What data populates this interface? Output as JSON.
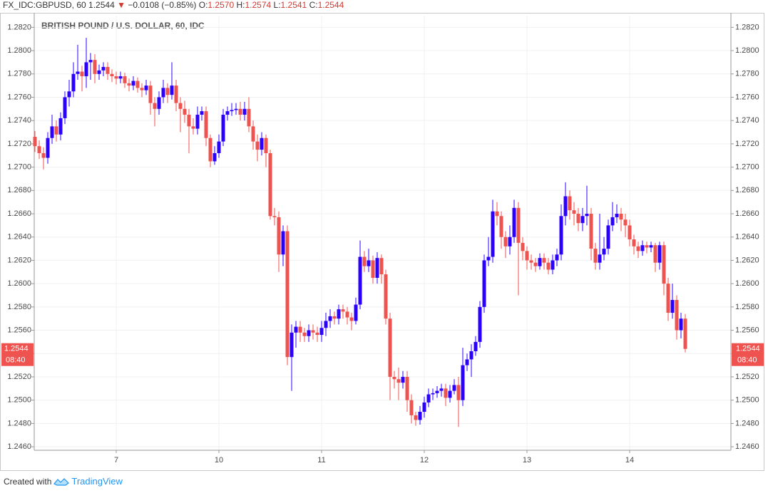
{
  "header": {
    "symbol": "FX_IDC:GBPUSD, 60",
    "last": "1.2544",
    "arrow": "▼",
    "change": "−0.0108 (−0.85%)",
    "open_label": "O:",
    "open": "1.2570",
    "high_label": "H:",
    "high": "1.2574",
    "low_label": "L:",
    "low": "1.2541",
    "close_label": "C:",
    "close": "1.2544"
  },
  "footer": {
    "created": "Created with",
    "brand": "TradingView"
  },
  "chart_data": {
    "type": "candlestick",
    "watermark": "BRITISH POUND / U.S. DOLLAR, 60, IDC",
    "up_color": "#2b00ff",
    "down_color": "#ef5350",
    "grid": true,
    "ylim": [
      1.2457,
      1.283
    ],
    "yticks": [
      {
        "value": 1.246,
        "label": "1.2460"
      },
      {
        "value": 1.248,
        "label": "1.2480"
      },
      {
        "value": 1.25,
        "label": "1.2500"
      },
      {
        "value": 1.252,
        "label": "1.2520"
      },
      {
        "value": 1.254,
        "label": "1.2540"
      },
      {
        "value": 1.256,
        "label": "1.2560"
      },
      {
        "value": 1.258,
        "label": "1.2580"
      },
      {
        "value": 1.26,
        "label": "1.2600"
      },
      {
        "value": 1.262,
        "label": "1.2620"
      },
      {
        "value": 1.264,
        "label": "1.2640"
      },
      {
        "value": 1.266,
        "label": "1.2660"
      },
      {
        "value": 1.268,
        "label": "1.2680"
      },
      {
        "value": 1.27,
        "label": "1.2700"
      },
      {
        "value": 1.272,
        "label": "1.2720"
      },
      {
        "value": 1.274,
        "label": "1.2740"
      },
      {
        "value": 1.276,
        "label": "1.2760"
      },
      {
        "value": 1.278,
        "label": "1.2780"
      },
      {
        "value": 1.28,
        "label": "1.2800"
      },
      {
        "value": 1.282,
        "label": "1.2820"
      }
    ],
    "price_label": {
      "value": 1.2544,
      "label": "1.2544",
      "time": "08:40"
    },
    "categories": [
      null,
      null,
      null,
      null,
      null,
      null,
      null,
      null,
      null,
      null,
      null,
      null,
      null,
      null,
      null,
      null,
      null,
      null,
      null,
      "7",
      null,
      null,
      null,
      null,
      null,
      null,
      null,
      null,
      null,
      null,
      null,
      null,
      null,
      null,
      null,
      null,
      null,
      null,
      null,
      null,
      null,
      null,
      null,
      "10",
      null,
      null,
      null,
      null,
      null,
      null,
      null,
      null,
      null,
      null,
      null,
      null,
      null,
      null,
      null,
      null,
      null,
      null,
      null,
      null,
      null,
      null,
      null,
      "11",
      null,
      null,
      null,
      null,
      null,
      null,
      null,
      null,
      null,
      null,
      null,
      null,
      null,
      null,
      null,
      null,
      null,
      null,
      null,
      null,
      null,
      null,
      null,
      "12",
      null,
      null,
      null,
      null,
      null,
      null,
      null,
      null,
      null,
      null,
      null,
      null,
      null,
      null,
      null,
      null,
      null,
      null,
      null,
      null,
      null,
      null,
      null,
      "13",
      null,
      null,
      null,
      null,
      null,
      null,
      null,
      null,
      null,
      null,
      null,
      null,
      null,
      null,
      null,
      null,
      null,
      null,
      null,
      null,
      null,
      null,
      null,
      "14",
      null,
      null,
      null,
      null,
      null,
      null,
      null,
      null,
      null,
      null,
      null,
      null,
      null
    ],
    "open": [
      1.2726,
      1.2718,
      1.2712,
      1.2708,
      1.2725,
      1.2735,
      1.2728,
      1.2742,
      1.276,
      1.2765,
      1.278,
      1.2782,
      1.2778,
      1.279,
      1.2792,
      1.278,
      1.2783,
      1.2786,
      1.278,
      1.2778,
      1.2776,
      1.2778,
      1.2772,
      1.277,
      1.2774,
      1.2768,
      1.2766,
      1.277,
      1.2755,
      1.275,
      1.276,
      1.2768,
      1.2762,
      1.277,
      1.2755,
      1.275,
      1.2745,
      1.2735,
      1.2733,
      1.2745,
      1.2748,
      1.2725,
      1.2705,
      1.2712,
      1.2722,
      1.2745,
      1.2748,
      1.2749,
      1.275,
      1.2745,
      1.275,
      1.2735,
      1.2722,
      1.2715,
      1.2725,
      1.2712,
      1.2658,
      1.2657,
      1.2625,
      1.2645,
      1.2537,
      1.2558,
      1.2563,
      1.2558,
      1.2555,
      1.256,
      1.2558,
      1.2556,
      1.2562,
      1.2568,
      1.2572,
      1.257,
      1.2578,
      1.2576,
      1.2571,
      1.2568,
      1.2582,
      1.2623,
      1.2615,
      1.262,
      1.2605,
      1.2622,
      1.2608,
      1.257,
      1.252,
      1.2518,
      1.2515,
      1.252,
      1.25,
      1.2487,
      1.2483,
      1.249,
      1.2498,
      1.2505,
      1.2506,
      1.2508,
      1.251,
      1.2502,
      1.2508,
      1.2513,
      1.25,
      1.253,
      1.2535,
      1.2542,
      1.255,
      1.258,
      1.262,
      1.2623,
      1.2662,
      1.2658,
      1.264,
      1.2632,
      1.264,
      1.2665,
      1.2635,
      1.2628,
      1.262,
      1.2618,
      1.2615,
      1.2622,
      1.2618,
      1.2612,
      1.262,
      1.2625,
      1.2658,
      1.2675,
      1.2663,
      1.266,
      1.2652,
      1.2658,
      1.266,
      1.263,
      1.2618,
      1.2625,
      1.263,
      1.265,
      1.2657,
      1.266,
      1.2655,
      1.265,
      1.2638,
      1.2632,
      1.2628,
      1.2633,
      1.2631,
      1.2633,
      1.2618,
      1.2633,
      1.26,
      1.2575,
      1.2586,
      1.256,
      1.257
    ],
    "high": [
      1.2731,
      1.2723,
      1.2717,
      1.273,
      1.2745,
      1.274,
      1.2747,
      1.2765,
      1.2775,
      1.279,
      1.2805,
      1.2787,
      1.2811,
      1.2798,
      1.2797,
      1.2788,
      1.279,
      1.279,
      1.2784,
      1.2782,
      1.2782,
      1.2781,
      1.2776,
      1.2778,
      1.2777,
      1.2772,
      1.2775,
      1.2774,
      1.276,
      1.2765,
      1.2775,
      1.2772,
      1.279,
      1.2775,
      1.276,
      1.2757,
      1.275,
      1.2742,
      1.2752,
      1.2752,
      1.2752,
      1.2728,
      1.2718,
      1.2728,
      1.275,
      1.2752,
      1.2755,
      1.2755,
      1.2756,
      1.2756,
      1.276,
      1.274,
      1.2728,
      1.273,
      1.2728,
      1.2715,
      1.2665,
      1.2662,
      1.265,
      1.265,
      1.2565,
      1.2568,
      1.2568,
      1.2562,
      1.2565,
      1.2565,
      1.2563,
      1.2568,
      1.2575,
      1.2578,
      1.2576,
      1.2582,
      1.2582,
      1.258,
      1.2575,
      1.2588,
      1.2637,
      1.2628,
      1.263,
      1.2624,
      1.2627,
      1.2625,
      1.2612,
      1.2575,
      1.2525,
      1.2528,
      1.2525,
      1.2525,
      1.2505,
      1.249,
      1.2495,
      1.2503,
      1.251,
      1.251,
      1.2512,
      1.2514,
      1.2514,
      1.2513,
      1.2518,
      1.252,
      1.2545,
      1.254,
      1.2548,
      1.2555,
      1.2585,
      1.2625,
      1.264,
      1.2672,
      1.267,
      1.2662,
      1.2645,
      1.265,
      1.2672,
      1.267,
      1.264,
      1.2632,
      1.2625,
      1.2622,
      1.2626,
      1.2626,
      1.2622,
      1.2625,
      1.263,
      1.2668,
      1.2687,
      1.268,
      1.267,
      1.2665,
      1.2665,
      1.2684,
      1.2665,
      1.2635,
      1.266,
      1.264,
      1.2655,
      1.267,
      1.2668,
      1.2665,
      1.266,
      1.2655,
      1.2642,
      1.2636,
      1.2637,
      1.2636,
      1.2636,
      1.2635,
      1.2636,
      1.2636,
      1.2605,
      1.26,
      1.259,
      1.2575,
      1.2574
    ],
    "low": [
      1.2713,
      1.2707,
      1.2698,
      1.2703,
      1.272,
      1.2722,
      1.2723,
      1.2737,
      1.2752,
      1.276,
      1.2775,
      1.2765,
      1.2768,
      1.2775,
      1.2772,
      1.2775,
      1.2778,
      1.2775,
      1.2773,
      1.2771,
      1.2772,
      1.2768,
      1.2765,
      1.2766,
      1.2764,
      1.276,
      1.2762,
      1.2745,
      1.2735,
      1.2745,
      1.2755,
      1.2755,
      1.2758,
      1.2748,
      1.273,
      1.2738,
      1.2712,
      1.2728,
      1.2728,
      1.274,
      1.2718,
      1.27,
      1.2702,
      1.2708,
      1.2718,
      1.274,
      1.2744,
      1.2745,
      1.274,
      1.274,
      1.273,
      1.2715,
      1.2705,
      1.271,
      1.27,
      1.2655,
      1.265,
      1.261,
      1.2615,
      1.253,
      1.2508,
      1.2545,
      1.255,
      1.255,
      1.255,
      1.2552,
      1.255,
      1.255,
      1.2555,
      1.2562,
      1.2565,
      1.2565,
      1.257,
      1.2565,
      1.256,
      1.2565,
      1.2578,
      1.261,
      1.261,
      1.26,
      1.26,
      1.26,
      1.2565,
      1.25,
      1.251,
      1.25,
      1.251,
      1.249,
      1.248,
      1.2478,
      1.2479,
      1.2485,
      1.2494,
      1.25,
      1.2502,
      1.2503,
      1.2495,
      1.2498,
      1.2505,
      1.2477,
      1.2495,
      1.2525,
      1.252,
      1.2538,
      1.2545,
      1.2575,
      1.2615,
      1.2618,
      1.265,
      1.263,
      1.2622,
      1.2625,
      1.2635,
      1.259,
      1.262,
      1.2612,
      1.2612,
      1.261,
      1.2612,
      1.2612,
      1.2608,
      1.2608,
      1.2615,
      1.262,
      1.265,
      1.2655,
      1.265,
      1.2645,
      1.2645,
      1.265,
      1.262,
      1.2612,
      1.2612,
      1.262,
      1.2625,
      1.2645,
      1.2652,
      1.2645,
      1.264,
      1.2632,
      1.2625,
      1.2622,
      1.2624,
      1.2626,
      1.2627,
      1.261,
      1.2612,
      1.259,
      1.2568,
      1.257,
      1.2552,
      1.2553,
      1.2541
    ],
    "close": [
      1.2718,
      1.2712,
      1.2708,
      1.2725,
      1.2735,
      1.2728,
      1.2742,
      1.276,
      1.2765,
      1.278,
      1.2782,
      1.2778,
      1.279,
      1.2792,
      1.278,
      1.2783,
      1.2786,
      1.278,
      1.2778,
      1.2776,
      1.2778,
      1.2772,
      1.277,
      1.2774,
      1.2768,
      1.2766,
      1.277,
      1.2755,
      1.275,
      1.276,
      1.2768,
      1.2762,
      1.277,
      1.2755,
      1.275,
      1.2745,
      1.2735,
      1.2733,
      1.2745,
      1.2748,
      1.2725,
      1.2705,
      1.2712,
      1.2722,
      1.2745,
      1.2748,
      1.2749,
      1.275,
      1.2745,
      1.275,
      1.2735,
      1.2722,
      1.2715,
      1.2725,
      1.2712,
      1.2658,
      1.2657,
      1.2625,
      1.2645,
      1.2537,
      1.2558,
      1.2563,
      1.2558,
      1.2555,
      1.256,
      1.2558,
      1.2556,
      1.2562,
      1.2568,
      1.2572,
      1.257,
      1.2578,
      1.2576,
      1.2571,
      1.2568,
      1.2582,
      1.2623,
      1.2615,
      1.262,
      1.2605,
      1.2622,
      1.2608,
      1.257,
      1.252,
      1.2518,
      1.2515,
      1.252,
      1.25,
      1.2487,
      1.2483,
      1.249,
      1.2498,
      1.2505,
      1.2506,
      1.2508,
      1.251,
      1.2502,
      1.2508,
      1.2513,
      1.25,
      1.253,
      1.2535,
      1.2542,
      1.255,
      1.258,
      1.262,
      1.2623,
      1.2662,
      1.2658,
      1.264,
      1.2632,
      1.264,
      1.2665,
      1.2635,
      1.2628,
      1.262,
      1.2618,
      1.2615,
      1.2622,
      1.2618,
      1.2612,
      1.262,
      1.2625,
      1.2658,
      1.2675,
      1.2663,
      1.266,
      1.2652,
      1.2658,
      1.266,
      1.263,
      1.2618,
      1.2625,
      1.263,
      1.265,
      1.2657,
      1.266,
      1.2655,
      1.265,
      1.2638,
      1.2632,
      1.2628,
      1.2633,
      1.2631,
      1.2633,
      1.2618,
      1.2633,
      1.26,
      1.2575,
      1.2586,
      1.256,
      1.257,
      1.2544
    ]
  }
}
